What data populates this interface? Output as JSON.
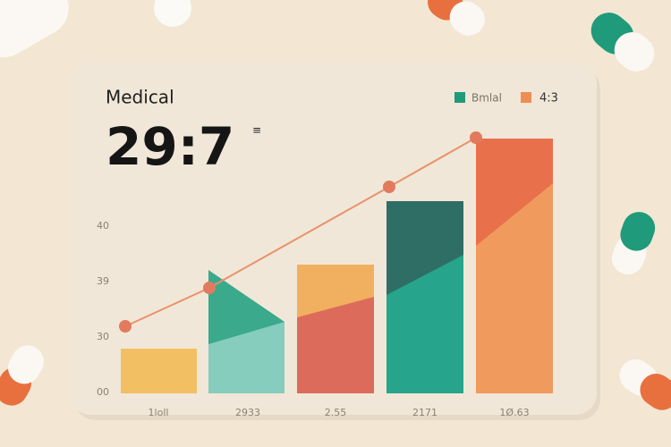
{
  "card": {
    "title": "Medical",
    "value": "29:7",
    "legend": [
      {
        "label": "Bmlal"
      },
      {
        "label": "4:3"
      }
    ],
    "y_axis_labels": [
      "40",
      "39",
      "30",
      "00"
    ],
    "x_axis_labels": [
      "1loll",
      "2933",
      "2.55",
      "2171",
      "1Ø.63"
    ]
  }
}
